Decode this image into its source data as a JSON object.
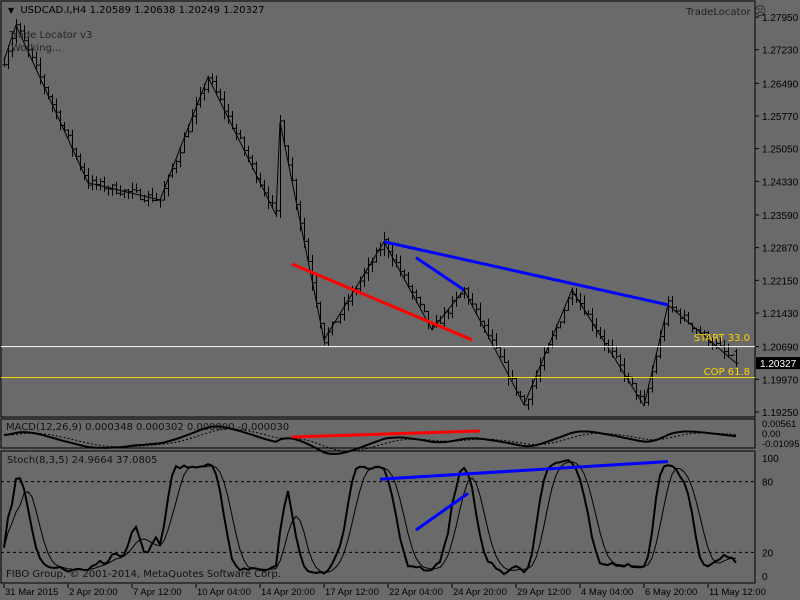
{
  "header": {
    "symbol_line": "USDCAD.I,H4  1.20589 1.20638 1.20249 1.20327",
    "menu_icon": "triangle-down-icon"
  },
  "indicator_labels": {
    "trade_locator": "Trade Locator v3",
    "status": "Working...",
    "brand": "TradeLocator",
    "brand_icon": "sad-face-icon"
  },
  "copyright": "FIBO Group, © 2001-2014, MetaQuotes Software Corp.",
  "colors": {
    "background": "#6a6a6a",
    "bars": "#000000",
    "blue_line": "#0000ff",
    "red_line": "#ff0000",
    "start_line": "#ffffff",
    "cop_line": "#ffd700",
    "label_yellow": "#ffd700"
  },
  "chart_data": [
    {
      "type": "ohlc",
      "title": "USDCAD.I,H4",
      "ylim": [
        1.1925,
        1.2795
      ],
      "yticks": [
        "1.27950",
        "1.27230",
        "1.26490",
        "1.25770",
        "1.25050",
        "1.24330",
        "1.23590",
        "1.22870",
        "1.22150",
        "1.21430",
        "1.20690",
        "1.19970",
        "1.19250"
      ],
      "xticks": [
        "31 Mar 2015",
        "2 Apr 20:00",
        "7 Apr 12:00",
        "10 Apr 04:00",
        "14 Apr 20:00",
        "17 Apr 12:00",
        "22 Apr 04:00",
        "24 Apr 20:00",
        "29 Apr 12:00",
        "4 May 04:00",
        "6 May 20:00",
        "11 May 12:00"
      ],
      "last": {
        "open": 1.20589,
        "high": 1.20638,
        "low": 1.20249,
        "close": 1.20327,
        "label": "1.20327"
      },
      "zigzag_pivots": [
        [
          0,
          1.27
        ],
        [
          3,
          1.2777
        ],
        [
          21,
          1.243
        ],
        [
          39,
          1.2392
        ],
        [
          51,
          1.2663
        ],
        [
          68,
          1.2359
        ],
        [
          69,
          1.2564
        ],
        [
          80,
          1.2084
        ],
        [
          95,
          1.23
        ],
        [
          107,
          1.2106
        ],
        [
          115,
          1.2194
        ],
        [
          130,
          1.1941
        ],
        [
          142,
          1.2194
        ],
        [
          160,
          1.1939
        ],
        [
          166,
          1.2161
        ],
        [
          183,
          1.2033
        ]
      ],
      "trendlines": [
        {
          "color": "blue",
          "from": [
            95,
            1.23
          ],
          "to": [
            166,
            1.2161
          ]
        },
        {
          "color": "blue",
          "from": [
            103,
            1.2265
          ],
          "to": [
            115,
            1.2194
          ]
        },
        {
          "color": "red",
          "from": [
            72,
            1.2251
          ],
          "to": [
            117,
            1.2084
          ]
        }
      ],
      "levels": [
        {
          "label": "START 33.0",
          "price": 1.2069,
          "color": "white"
        },
        {
          "label": "COP 61.8",
          "price": 1.2001,
          "color": "yellow"
        }
      ]
    },
    {
      "type": "macd",
      "label": "MACD(12,26,9) 0.000348 0.000302 0.000000 -0.000030",
      "yticks": [
        "0.00561",
        "0.00",
        "-0.010955"
      ],
      "trendline": {
        "color": "red"
      }
    },
    {
      "type": "stochastic",
      "label": "Stoch(8,3,5) 24.9664 37.0805",
      "ylim": [
        0,
        100
      ],
      "yticks": [
        "100",
        "80",
        "20",
        "0"
      ],
      "levels": [
        80,
        20
      ],
      "trendlines": [
        {
          "color": "blue",
          "from": [
            94,
            82
          ],
          "to": [
            166,
            97
          ]
        },
        {
          "color": "blue",
          "from": [
            103,
            39
          ],
          "to": [
            116,
            70
          ]
        }
      ]
    }
  ]
}
